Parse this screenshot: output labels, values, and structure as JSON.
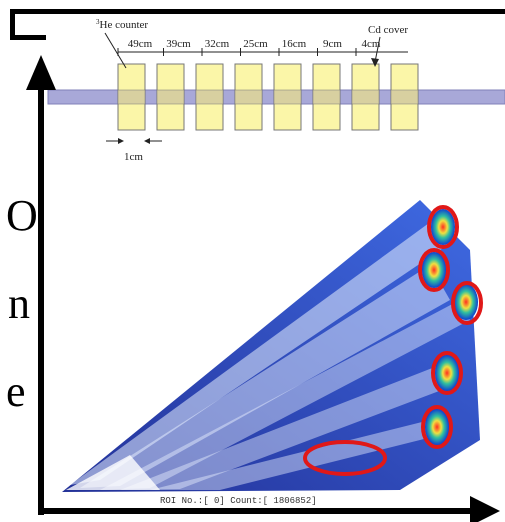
{
  "diagram": {
    "counter_label": {
      "sup": "3",
      "text": "He counter"
    },
    "distances": [
      "49cm",
      "39cm",
      "32cm",
      "25cm",
      "16cm",
      "9cm",
      "4cm"
    ],
    "cover_label": "Cd cover",
    "gap_label": "1cm",
    "side_letters": [
      "O",
      "n",
      "e"
    ],
    "roi_text": "ROI No.:[   0]  Count:[   1806852]"
  }
}
